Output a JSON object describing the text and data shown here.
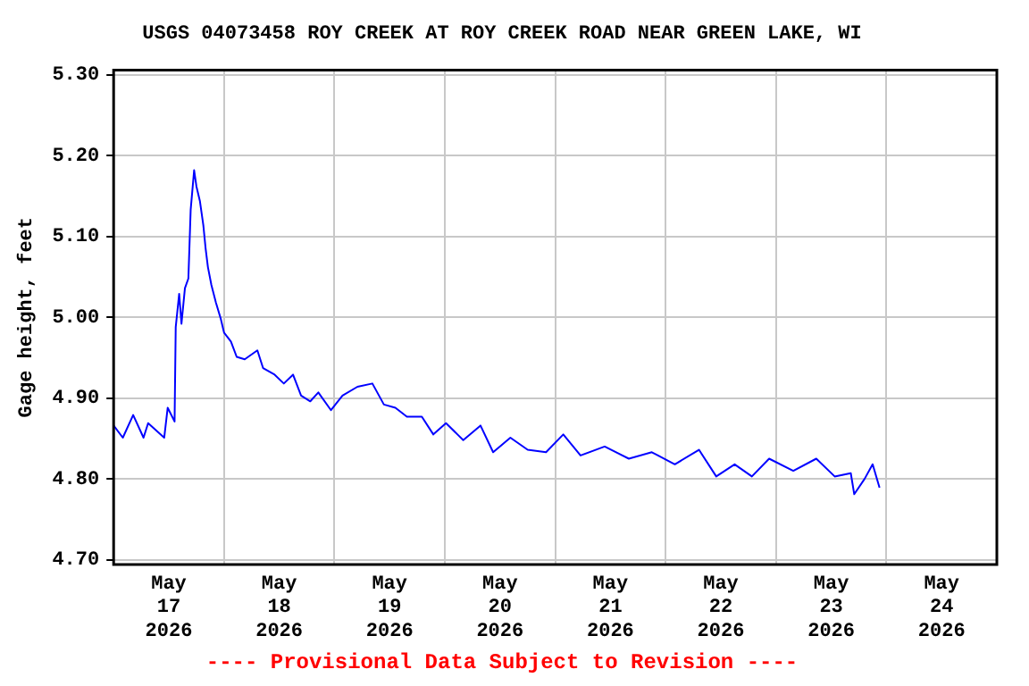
{
  "chart_data": {
    "type": "line",
    "title": "USGS 04073458 ROY CREEK AT ROY CREEK ROAD NEAR GREEN LAKE, WI",
    "ylabel": "Gage height, feet",
    "annotations": [
      "---- Provisional Data Subject to Revision ----"
    ],
    "x": [
      "2026-05-17T00:00",
      "2026-05-17T02:00",
      "2026-05-17T04:15",
      "2026-05-17T06:30",
      "2026-05-17T07:30",
      "2026-05-17T11:00",
      "2026-05-17T11:45",
      "2026-05-17T13:15",
      "2026-05-17T13:30",
      "2026-05-17T14:15",
      "2026-05-17T14:45",
      "2026-05-17T15:30",
      "2026-05-17T16:15",
      "2026-05-17T16:45",
      "2026-05-17T17:30",
      "2026-05-17T18:00",
      "2026-05-17T18:45",
      "2026-05-17T19:30",
      "2026-05-17T20:00",
      "2026-05-17T20:30",
      "2026-05-17T21:15",
      "2026-05-17T22:15",
      "2026-05-17T23:15",
      "2026-05-18T00:00",
      "2026-05-18T01:30",
      "2026-05-18T02:45",
      "2026-05-18T04:30",
      "2026-05-18T07:15",
      "2026-05-18T08:30",
      "2026-05-18T11:00",
      "2026-05-18T13:00",
      "2026-05-18T15:00",
      "2026-05-18T16:45",
      "2026-05-18T18:45",
      "2026-05-18T20:30",
      "2026-05-18T23:15",
      "2026-05-19T01:45",
      "2026-05-19T05:00",
      "2026-05-19T08:15",
      "2026-05-19T10:45",
      "2026-05-19T13:15",
      "2026-05-19T15:45",
      "2026-05-19T19:00",
      "2026-05-19T21:30",
      "2026-05-20T00:15",
      "2026-05-20T02:45",
      "2026-05-20T04:00",
      "2026-05-20T07:45",
      "2026-05-20T10:30",
      "2026-05-20T14:15",
      "2026-05-20T18:00",
      "2026-05-20T22:00",
      "2026-05-21T01:45",
      "2026-05-21T05:30",
      "2026-05-21T10:45",
      "2026-05-21T16:00",
      "2026-05-21T21:00",
      "2026-05-22T02:00",
      "2026-05-22T07:15",
      "2026-05-22T11:00",
      "2026-05-22T15:00",
      "2026-05-22T18:45",
      "2026-05-22T22:30",
      "2026-05-23T03:45",
      "2026-05-23T08:45",
      "2026-05-23T12:45",
      "2026-05-23T16:15",
      "2026-05-23T17:00",
      "2026-05-23T19:15",
      "2026-05-23T21:00",
      "2026-05-23T22:30"
    ],
    "series": [
      {
        "color": "#0000ff",
        "values": [
          4.866,
          4.851,
          4.879,
          4.851,
          4.869,
          4.851,
          4.888,
          4.871,
          4.988,
          5.029,
          4.992,
          5.036,
          5.048,
          5.133,
          5.182,
          5.162,
          5.144,
          5.114,
          5.085,
          5.062,
          5.04,
          5.018,
          4.999,
          4.981,
          4.97,
          4.951,
          4.948,
          4.959,
          4.937,
          4.929,
          4.918,
          4.929,
          4.903,
          4.896,
          4.907,
          4.885,
          4.903,
          4.914,
          4.918,
          4.892,
          4.888,
          4.877,
          4.877,
          4.855,
          4.869,
          4.855,
          4.848,
          4.866,
          4.833,
          4.851,
          4.836,
          4.833,
          4.855,
          4.829,
          4.84,
          4.825,
          4.833,
          4.818,
          4.836,
          4.803,
          4.818,
          4.803,
          4.825,
          4.81,
          4.825,
          4.803,
          4.807,
          4.781,
          4.8,
          4.818,
          4.789
        ]
      }
    ],
    "xlim": [
      "2026-05-17T00:00",
      "2026-05-25T00:00"
    ],
    "xticks": [
      {
        "value": "2026-05-17T12:00",
        "label": "May\n17\n2026"
      },
      {
        "value": "2026-05-18T00:00",
        "label": null
      },
      {
        "value": "2026-05-18T12:00",
        "label": "May\n18\n2026"
      },
      {
        "value": "2026-05-19T00:00",
        "label": null
      },
      {
        "value": "2026-05-19T12:00",
        "label": "May\n19\n2026"
      },
      {
        "value": "2026-05-20T00:00",
        "label": null
      },
      {
        "value": "2026-05-20T12:00",
        "label": "May\n20\n2026"
      },
      {
        "value": "2026-05-21T00:00",
        "label": null
      },
      {
        "value": "2026-05-21T12:00",
        "label": "May\n21\n2026"
      },
      {
        "value": "2026-05-22T00:00",
        "label": null
      },
      {
        "value": "2026-05-22T12:00",
        "label": "May\n22\n2026"
      },
      {
        "value": "2026-05-23T00:00",
        "label": null
      },
      {
        "value": "2026-05-23T12:00",
        "label": "May\n23\n2026"
      },
      {
        "value": "2026-05-24T00:00",
        "label": null
      },
      {
        "value": "2026-05-24T12:00",
        "label": "May\n24\n2026"
      }
    ],
    "ylim": [
      4.694,
      5.306
    ],
    "yticks": [
      {
        "value": 4.7,
        "label": "4.70"
      },
      {
        "value": 4.8,
        "label": "4.80"
      },
      {
        "value": 4.9,
        "label": "4.90"
      },
      {
        "value": 5.0,
        "label": "5.00"
      },
      {
        "value": 5.1,
        "label": "5.10"
      },
      {
        "value": 5.2,
        "label": "5.20"
      },
      {
        "value": 5.3,
        "label": "5.30"
      }
    ],
    "grid": true,
    "legend": false,
    "marker": "none",
    "line_style": "solid"
  }
}
